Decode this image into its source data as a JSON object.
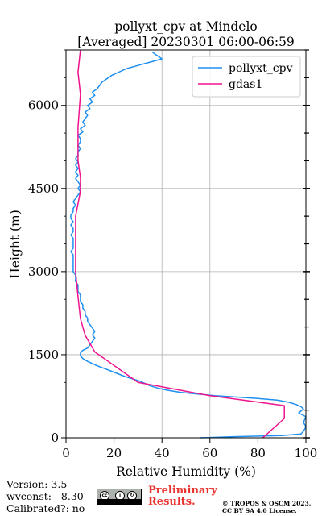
{
  "chart_data": {
    "type": "line",
    "title": [
      "pollyxt_cpv at Mindelo",
      "[Averaged] 20230301 06:00-06:59"
    ],
    "xlabel": "Relative Humidity (%)",
    "ylabel": "Height (m)",
    "xlim": [
      0,
      100
    ],
    "ylim": [
      0,
      7000
    ],
    "xticks": [
      0,
      20,
      40,
      60,
      80,
      100
    ],
    "yticks": [
      0,
      1500,
      3000,
      4500,
      6000
    ],
    "grid": true,
    "legend_position": "top-right",
    "series": [
      {
        "name": "pollyxt_cpv",
        "color": "#1f8ff0",
        "points": [
          [
            56,
            0
          ],
          [
            70,
            20
          ],
          [
            90,
            40
          ],
          [
            98,
            70
          ],
          [
            99,
            120
          ],
          [
            100,
            200
          ],
          [
            99,
            280
          ],
          [
            100,
            380
          ],
          [
            97,
            450
          ],
          [
            99,
            520
          ],
          [
            98,
            560
          ],
          [
            96,
            600
          ],
          [
            93,
            640
          ],
          [
            88,
            680
          ],
          [
            80,
            710
          ],
          [
            70,
            740
          ],
          [
            62,
            760
          ],
          [
            55,
            790
          ],
          [
            48,
            820
          ],
          [
            42,
            860
          ],
          [
            38,
            900
          ],
          [
            35,
            940
          ],
          [
            33,
            980
          ],
          [
            31,
            1020
          ],
          [
            28,
            1060
          ],
          [
            25,
            1100
          ],
          [
            22,
            1150
          ],
          [
            19,
            1200
          ],
          [
            16,
            1250
          ],
          [
            13,
            1300
          ],
          [
            11,
            1340
          ],
          [
            9,
            1380
          ],
          [
            7,
            1430
          ],
          [
            6,
            1480
          ],
          [
            6,
            1530
          ],
          [
            7,
            1580
          ],
          [
            9,
            1620
          ],
          [
            10,
            1680
          ],
          [
            11,
            1740
          ],
          [
            12,
            1800
          ],
          [
            11,
            1860
          ],
          [
            12,
            1920
          ],
          [
            11,
            1980
          ],
          [
            10,
            2040
          ],
          [
            9,
            2100
          ],
          [
            9,
            2160
          ],
          [
            8,
            2220
          ],
          [
            8,
            2280
          ],
          [
            7,
            2340
          ],
          [
            7,
            2400
          ],
          [
            6,
            2460
          ],
          [
            6,
            2520
          ],
          [
            6,
            2580
          ],
          [
            5,
            2640
          ],
          [
            5,
            2700
          ],
          [
            5,
            2760
          ],
          [
            4,
            2820
          ],
          [
            4,
            2880
          ],
          [
            4,
            2940
          ],
          [
            3,
            3000
          ],
          [
            3,
            3060
          ],
          [
            3,
            3120
          ],
          [
            3,
            3180
          ],
          [
            3,
            3240
          ],
          [
            3,
            3300
          ],
          [
            2,
            3360
          ],
          [
            3,
            3420
          ],
          [
            3,
            3480
          ],
          [
            3,
            3540
          ],
          [
            3,
            3600
          ],
          [
            2,
            3660
          ],
          [
            3,
            3720
          ],
          [
            3,
            3780
          ],
          [
            2,
            3840
          ],
          [
            3,
            3900
          ],
          [
            2,
            3960
          ],
          [
            2,
            4020
          ],
          [
            3,
            4080
          ],
          [
            3,
            4140
          ],
          [
            4,
            4200
          ],
          [
            3,
            4260
          ],
          [
            4,
            4320
          ],
          [
            5,
            4380
          ],
          [
            6,
            4440
          ],
          [
            5,
            4500
          ],
          [
            6,
            4560
          ],
          [
            5,
            4620
          ],
          [
            4,
            4680
          ],
          [
            5,
            4740
          ],
          [
            4,
            4800
          ],
          [
            5,
            4860
          ],
          [
            4,
            4920
          ],
          [
            5,
            4980
          ],
          [
            4,
            5040
          ],
          [
            5,
            5100
          ],
          [
            5,
            5160
          ],
          [
            6,
            5220
          ],
          [
            5,
            5280
          ],
          [
            6,
            5340
          ],
          [
            6,
            5400
          ],
          [
            5,
            5460
          ],
          [
            7,
            5520
          ],
          [
            6,
            5580
          ],
          [
            8,
            5640
          ],
          [
            7,
            5700
          ],
          [
            8,
            5760
          ],
          [
            9,
            5820
          ],
          [
            8,
            5880
          ],
          [
            10,
            5940
          ],
          [
            9,
            6000
          ],
          [
            11,
            6060
          ],
          [
            10,
            6120
          ],
          [
            12,
            6180
          ],
          [
            11,
            6240
          ],
          [
            13,
            6300
          ],
          [
            14,
            6360
          ],
          [
            15,
            6420
          ],
          [
            17,
            6480
          ],
          [
            19,
            6540
          ],
          [
            22,
            6600
          ],
          [
            25,
            6660
          ],
          [
            30,
            6720
          ],
          [
            35,
            6780
          ],
          [
            40,
            6840
          ],
          [
            38,
            6900
          ],
          [
            36,
            6960
          ]
        ]
      },
      {
        "name": "gdas1",
        "color": "#f0138e",
        "points": [
          [
            82,
            0
          ],
          [
            91,
            350
          ],
          [
            91,
            580
          ],
          [
            60,
            760
          ],
          [
            30,
            1000
          ],
          [
            12,
            1550
          ],
          [
            8,
            1850
          ],
          [
            6,
            2150
          ],
          [
            5,
            2550
          ],
          [
            4,
            3000
          ],
          [
            4,
            3500
          ],
          [
            4,
            4000
          ],
          [
            6,
            4450
          ],
          [
            6,
            4700
          ],
          [
            5,
            5000
          ],
          [
            5,
            5600
          ],
          [
            6,
            6200
          ],
          [
            5,
            6600
          ],
          [
            6,
            7000
          ]
        ]
      }
    ]
  },
  "footer": {
    "version": "Version: 3.5",
    "wvconst": "wvconst:   8.30",
    "calibrated": "Calibrated?: no",
    "preliminary_line1": "Preliminary",
    "preliminary_line2": "Results.",
    "copyright_line1": "© TROPOS & OSCM 2023.",
    "copyright_line2": "CC BY SA 4.0 License."
  }
}
